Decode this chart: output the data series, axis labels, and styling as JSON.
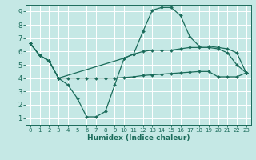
{
  "xlabel": "Humidex (Indice chaleur)",
  "bg_color": "#c5e8e5",
  "line_color": "#1a6b5a",
  "grid_color": "#ffffff",
  "xlim": [
    -0.5,
    23.5
  ],
  "ylim": [
    0.5,
    9.5
  ],
  "xticks": [
    0,
    1,
    2,
    3,
    4,
    5,
    6,
    7,
    8,
    9,
    10,
    11,
    12,
    13,
    14,
    15,
    16,
    17,
    18,
    19,
    20,
    21,
    22,
    23
  ],
  "yticks": [
    1,
    2,
    3,
    4,
    5,
    6,
    7,
    8,
    9
  ],
  "line1_x": [
    0,
    1,
    2,
    3,
    4,
    5,
    6,
    7,
    8,
    9,
    10,
    11,
    12,
    13,
    14,
    15,
    16,
    17,
    18,
    19,
    20,
    21,
    22,
    23
  ],
  "line1_y": [
    6.6,
    5.7,
    5.3,
    4.0,
    3.5,
    2.5,
    1.1,
    1.1,
    1.5,
    3.5,
    5.5,
    5.8,
    6.0,
    6.1,
    6.1,
    6.1,
    6.2,
    6.3,
    6.3,
    6.3,
    6.2,
    5.9,
    5.0,
    4.4
  ],
  "line2_x": [
    0,
    1,
    2,
    3,
    4,
    5,
    6,
    7,
    8,
    9,
    10,
    11,
    12,
    13,
    14,
    15,
    16,
    17,
    18,
    19,
    20,
    21,
    22,
    23
  ],
  "line2_y": [
    6.6,
    5.7,
    5.3,
    4.0,
    4.0,
    4.0,
    4.0,
    4.0,
    4.0,
    4.0,
    4.05,
    4.1,
    4.2,
    4.25,
    4.3,
    4.35,
    4.4,
    4.45,
    4.5,
    4.5,
    4.1,
    4.1,
    4.1,
    4.4
  ],
  "line3_x": [
    0,
    1,
    2,
    3,
    10,
    11,
    12,
    13,
    14,
    15,
    16,
    17,
    18,
    19,
    20,
    21,
    22,
    23
  ],
  "line3_y": [
    6.6,
    5.7,
    5.3,
    4.0,
    5.5,
    5.8,
    7.5,
    9.1,
    9.3,
    9.3,
    8.7,
    7.1,
    6.4,
    6.4,
    6.3,
    6.2,
    5.9,
    4.4
  ],
  "xlabel_fontsize": 6.5,
  "xlabel_bold": true,
  "tick_fontsize_x": 5,
  "tick_fontsize_y": 6,
  "marker_size": 2.0,
  "line_width": 0.9
}
